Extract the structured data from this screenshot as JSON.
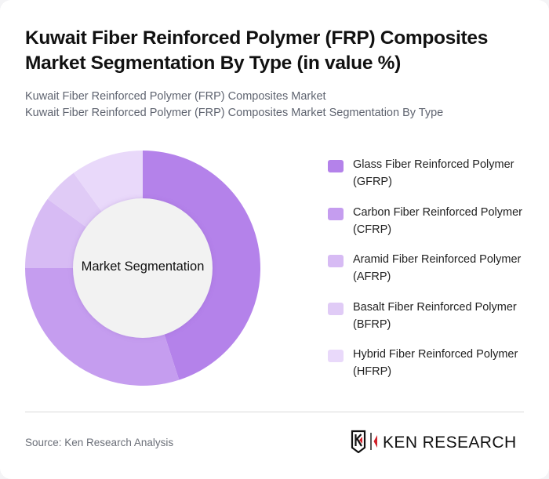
{
  "header": {
    "title": "Kuwait Fiber Reinforced Polymer (FRP) Composites Market Segmentation By Type (in value %)",
    "subtitle_lines": [
      "Kuwait Fiber Reinforced Polymer (FRP) Composites Market",
      "Kuwait Fiber Reinforced Polymer (FRP) Composites Market Segmentation By Type"
    ]
  },
  "chart": {
    "center_label": "Market Segmentation"
  },
  "legend": {
    "items": [
      {
        "label": "Glass Fiber Reinforced Polymer (GFRP)",
        "color": "#b482ea"
      },
      {
        "label": "Carbon Fiber Reinforced Polymer (CFRP)",
        "color": "#c59def"
      },
      {
        "label": "Aramid Fiber Reinforced Polymer (AFRP)",
        "color": "#d7bbf4"
      },
      {
        "label": "Basalt Fiber Reinforced Polymer (BFRP)",
        "color": "#e0cbf6"
      },
      {
        "label": "Hybrid Fiber Reinforced Polymer (HFRP)",
        "color": "#e9d9fa"
      }
    ]
  },
  "footer": {
    "source": "Source: Ken Research Analysis",
    "logo_text": "KEN RESEARCH"
  },
  "chart_data": {
    "type": "pie",
    "variant": "donut",
    "title": "Kuwait Fiber Reinforced Polymer (FRP) Composites Market Segmentation By Type (in value %)",
    "center_label": "Market Segmentation",
    "categories": [
      "Glass Fiber Reinforced Polymer (GFRP)",
      "Carbon Fiber Reinforced Polymer (CFRP)",
      "Aramid Fiber Reinforced Polymer (AFRP)",
      "Basalt Fiber Reinforced Polymer (BFRP)",
      "Hybrid Fiber Reinforced Polymer (HFRP)"
    ],
    "values": [
      45,
      30,
      10,
      5,
      10
    ],
    "colors": [
      "#b482ea",
      "#c59def",
      "#d7bbf4",
      "#e0cbf6",
      "#e9d9fa"
    ],
    "unit": "%",
    "legend_position": "right",
    "start_angle": "12 o'clock, clockwise"
  }
}
